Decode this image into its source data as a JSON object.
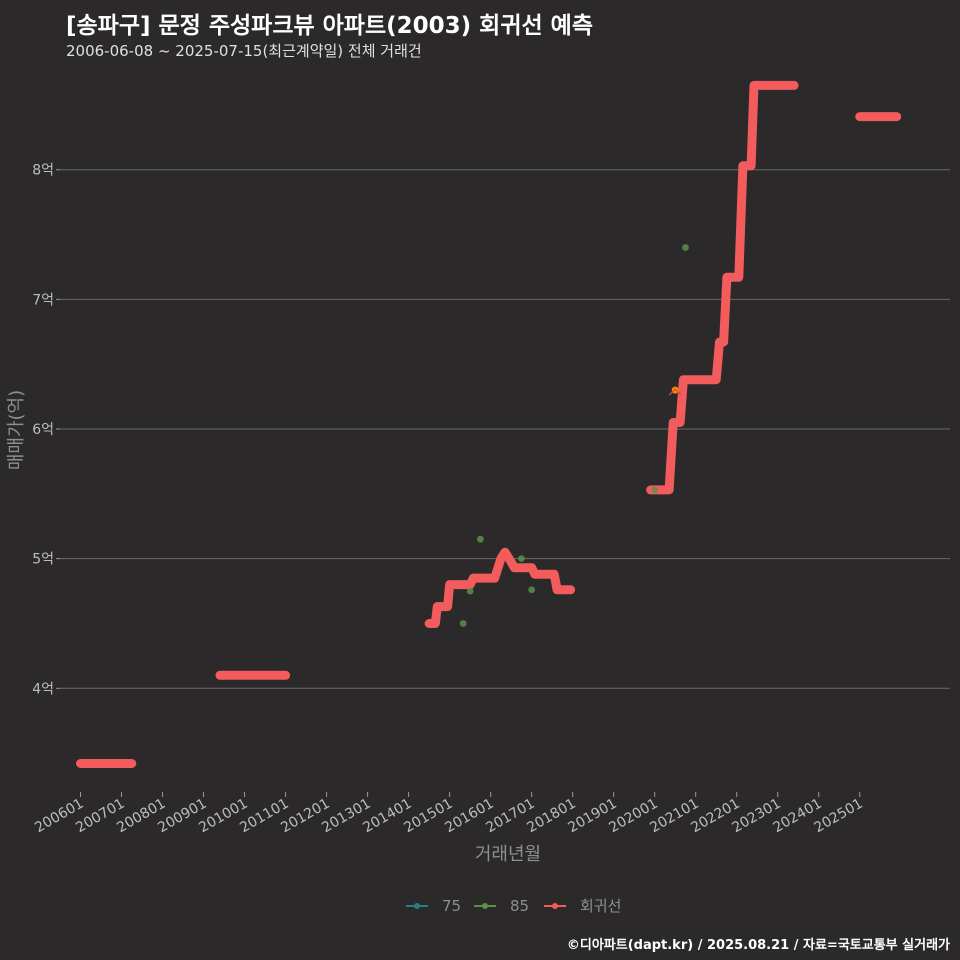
{
  "chart_data": {
    "type": "line",
    "title": "[송파구] 문정 주성파크뷰 아파트(2003) 회귀선 예측",
    "subtitle": "2006-06-08 ~ 2025-07-15(최근계약일) 전체 거래건",
    "xlabel": "거래년월",
    "ylabel": "매매가(억)",
    "yticks": [
      {
        "value": 4,
        "label": "4억"
      },
      {
        "value": 5,
        "label": "5억"
      },
      {
        "value": 6,
        "label": "6억"
      },
      {
        "value": 7,
        "label": "7억"
      },
      {
        "value": 8,
        "label": "8억"
      }
    ],
    "xticks": [
      "200601",
      "200701",
      "200801",
      "200901",
      "201001",
      "201101",
      "201201",
      "201301",
      "201401",
      "201501",
      "201601",
      "201701",
      "201801",
      "201901",
      "202001",
      "202101",
      "202201",
      "202301",
      "202401",
      "202501"
    ],
    "ylim": [
      3.2,
      8.8
    ],
    "xlim": [
      2005.5,
      2027.2
    ],
    "legend_position": "bottom",
    "series": [
      {
        "name": "75",
        "color": "#2a7f86",
        "points": []
      },
      {
        "name": "85",
        "color": "#5b8f4a",
        "points": [
          {
            "x": 2015.33,
            "y": 4.5
          },
          {
            "x": 2015.5,
            "y": 4.75
          },
          {
            "x": 2015.75,
            "y": 5.15
          },
          {
            "x": 2016.75,
            "y": 5.0
          },
          {
            "x": 2017.0,
            "y": 4.76
          },
          {
            "x": 2020.0,
            "y": 5.53
          },
          {
            "x": 2020.5,
            "y": 6.3
          },
          {
            "x": 2020.75,
            "y": 7.4
          }
        ]
      },
      {
        "name": "회귀선",
        "color": "#f25c5c",
        "segments": [
          [
            {
              "x": 2006.0,
              "y": 3.42
            },
            {
              "x": 2007.25,
              "y": 3.42
            }
          ],
          [
            {
              "x": 2009.4,
              "y": 4.1
            },
            {
              "x": 2011.0,
              "y": 4.1
            }
          ],
          [
            {
              "x": 2014.5,
              "y": 4.5
            },
            {
              "x": 2014.65,
              "y": 4.5
            },
            {
              "x": 2014.7,
              "y": 4.63
            },
            {
              "x": 2014.95,
              "y": 4.63
            },
            {
              "x": 2015.0,
              "y": 4.8
            },
            {
              "x": 2015.5,
              "y": 4.8
            },
            {
              "x": 2015.58,
              "y": 4.85
            },
            {
              "x": 2016.1,
              "y": 4.85
            },
            {
              "x": 2016.25,
              "y": 5.0
            },
            {
              "x": 2016.35,
              "y": 5.05
            },
            {
              "x": 2016.45,
              "y": 5.0
            },
            {
              "x": 2016.58,
              "y": 4.93
            },
            {
              "x": 2017.0,
              "y": 4.93
            },
            {
              "x": 2017.08,
              "y": 4.88
            },
            {
              "x": 2017.55,
              "y": 4.88
            },
            {
              "x": 2017.62,
              "y": 4.76
            },
            {
              "x": 2017.95,
              "y": 4.76
            }
          ],
          [
            {
              "x": 2019.9,
              "y": 5.53
            },
            {
              "x": 2020.35,
              "y": 5.53
            },
            {
              "x": 2020.45,
              "y": 6.05
            },
            {
              "x": 2020.62,
              "y": 6.05
            },
            {
              "x": 2020.7,
              "y": 6.38
            },
            {
              "x": 2021.5,
              "y": 6.38
            },
            {
              "x": 2021.58,
              "y": 6.67
            },
            {
              "x": 2021.68,
              "y": 6.67
            },
            {
              "x": 2021.76,
              "y": 7.17
            },
            {
              "x": 2022.05,
              "y": 7.17
            },
            {
              "x": 2022.15,
              "y": 8.03
            },
            {
              "x": 2022.35,
              "y": 8.03
            },
            {
              "x": 2022.42,
              "y": 8.65
            },
            {
              "x": 2023.4,
              "y": 8.65
            }
          ],
          [
            {
              "x": 2025.0,
              "y": 8.41
            },
            {
              "x": 2025.9,
              "y": 8.41
            }
          ]
        ]
      }
    ],
    "highlight_points": [
      {
        "x": 2020.5,
        "y": 6.3,
        "color": "#ff8a00"
      }
    ]
  },
  "caption": "©디아파트(dapt.kr) / 2025.08.21 / 자료=국토교통부 실거래가",
  "colors": {
    "background": "#2b292a",
    "grid": "#6a6a6a",
    "regression": "#f25c5c"
  }
}
